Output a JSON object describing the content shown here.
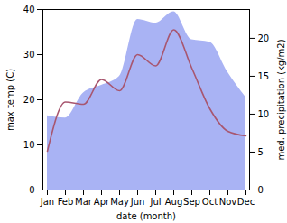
{
  "chart_data": {
    "type": "line",
    "xlabel": "date (month)",
    "ylabel": "max temp (C)",
    "y2label": "med. precipitation (kg/m2)",
    "categories": [
      "Jan",
      "Feb",
      "Mar",
      "Apr",
      "May",
      "Jun",
      "Jul",
      "Aug",
      "Sep",
      "Oct",
      "Nov",
      "Dec"
    ],
    "series": [
      {
        "name": "med. precipitation (kg/m2)",
        "type": "area",
        "axis": "y2",
        "color": "#a9b3f4",
        "values": [
          9.8,
          9.5,
          12.8,
          13.8,
          15,
          22.5,
          22,
          23.5,
          19.8,
          19.5,
          15.5,
          12.2
        ]
      },
      {
        "name": "max temp (C)",
        "type": "line",
        "color": "#a8566f",
        "values": [
          8.6,
          19.5,
          19,
          24.5,
          22,
          30,
          27.5,
          35.5,
          27,
          18,
          13,
          12
        ]
      }
    ],
    "ylim": [
      0,
      40
    ],
    "yticks": [
      0,
      10,
      20,
      30,
      40
    ],
    "y2lim": [
      0,
      23.8
    ],
    "y2ticks": [
      0,
      5,
      10,
      15,
      20
    ]
  }
}
